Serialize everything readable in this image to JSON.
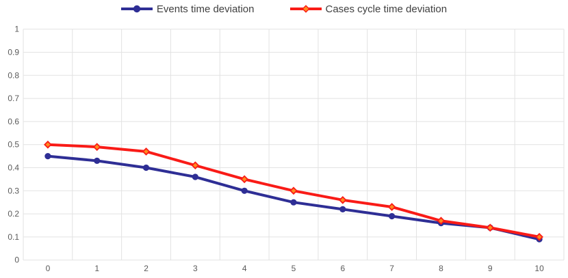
{
  "chart_data": {
    "type": "line",
    "title": "",
    "xlabel": "",
    "ylabel": "",
    "x": [
      0,
      1,
      2,
      3,
      4,
      5,
      6,
      7,
      8,
      9,
      10
    ],
    "x_tick_labels": [
      "0",
      "1",
      "2",
      "3",
      "4",
      "5",
      "6",
      "7",
      "8",
      "9",
      "10"
    ],
    "y_ticks": [
      "0",
      "0.1",
      "0.2",
      "0.3",
      "0.4",
      "0.5",
      "0.6",
      "0.7",
      "0.8",
      "0.9",
      "1"
    ],
    "ylim": [
      0,
      1
    ],
    "grid": true,
    "legend_position": "top",
    "series": [
      {
        "name": "Events time deviation",
        "color": "#2e2e95",
        "marker": "circle",
        "values": [
          0.45,
          0.43,
          0.4,
          0.36,
          0.3,
          0.25,
          0.22,
          0.19,
          0.16,
          0.14,
          0.09
        ]
      },
      {
        "name": "Cases cycle time deviation",
        "color": "#f91b17",
        "marker": "diamond",
        "marker_fill": "#ff8a1e",
        "values": [
          0.5,
          0.49,
          0.47,
          0.41,
          0.35,
          0.3,
          0.26,
          0.23,
          0.17,
          0.14,
          0.1
        ]
      }
    ],
    "colors": {
      "grid": "#e2e2e2",
      "tick_text": "#595959",
      "legend_text": "#3f3f3f",
      "background": "#ffffff"
    }
  }
}
